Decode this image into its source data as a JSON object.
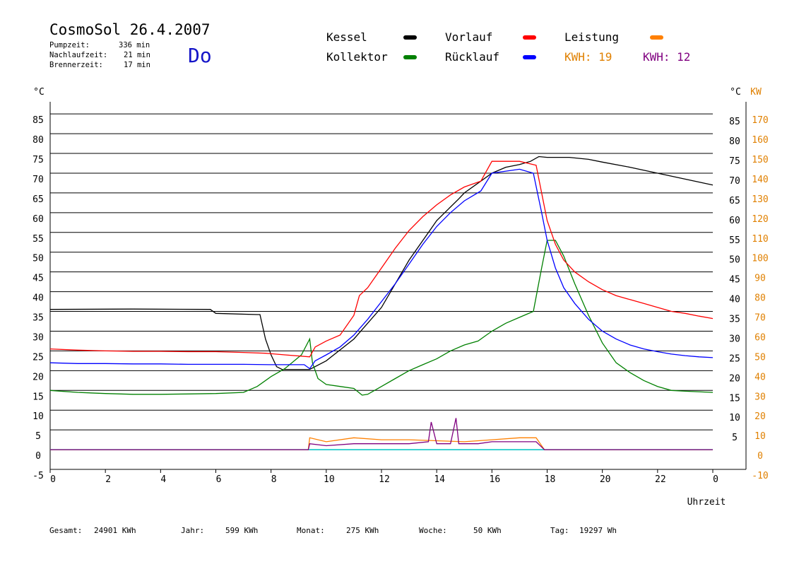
{
  "header": {
    "title": "CosmoSol 26.4.2007",
    "weekday": "Do",
    "stats": [
      {
        "label": "Pumpzeit:",
        "value": "336 min"
      },
      {
        "label": "Nachlaufzeit:",
        "value": "21 min"
      },
      {
        "label": "Brennerzeit:",
        "value": "17 min"
      }
    ]
  },
  "legend": {
    "items": [
      {
        "label": "Kessel",
        "color": "#000000"
      },
      {
        "label": "Kollektor",
        "color": "#008000"
      },
      {
        "label": "Vorlauf",
        "color": "#ff0000"
      },
      {
        "label": "Rücklauf",
        "color": "#0000ff"
      },
      {
        "label": "Leistung",
        "color": "#ff8000"
      }
    ],
    "kwh": [
      {
        "label": "KWH:",
        "value": "19",
        "color": "#e08000"
      },
      {
        "label": "KWH:",
        "value": "12",
        "color": "#800080"
      }
    ]
  },
  "footer": [
    {
      "label": "Gesamt:",
      "value": "24901 KWh"
    },
    {
      "label": "Jahr:",
      "value": "599 KWh"
    },
    {
      "label": "Monat:",
      "value": "275 KWh"
    },
    {
      "label": "Woche:",
      "value": "50 KWh"
    },
    {
      "label": "Tag:",
      "value": "19297 Wh"
    }
  ],
  "chart_data": {
    "type": "line",
    "xlabel": "Uhrzeit",
    "ylabel_left": "°C",
    "ylabel_right_temp": "°C",
    "ylabel_right_power": "KW",
    "xlim": [
      0,
      24
    ],
    "ylim": [
      -5,
      87
    ],
    "power_lim": [
      -10,
      174
    ],
    "x_ticks": [
      "0",
      "2",
      "4",
      "6",
      "8",
      "10",
      "12",
      "14",
      "16",
      "18",
      "20",
      "22",
      "0"
    ],
    "y_ticks_left": [
      85,
      80,
      75,
      70,
      65,
      60,
      55,
      50,
      45,
      40,
      35,
      30,
      25,
      20,
      15,
      10,
      5,
      0,
      -5
    ],
    "y_ticks_right_temp": [
      85,
      80,
      75,
      70,
      65,
      60,
      55,
      50,
      45,
      40,
      35,
      30,
      25,
      20,
      15,
      10,
      5
    ],
    "y_ticks_right_power": [
      170,
      160,
      150,
      140,
      130,
      120,
      110,
      100,
      90,
      80,
      70,
      60,
      50,
      40,
      30,
      20,
      10,
      0,
      -10
    ],
    "grid": true,
    "series": [
      {
        "name": "Kessel",
        "color": "#000000",
        "points": [
          [
            0,
            35.5
          ],
          [
            3,
            35.6
          ],
          [
            5.8,
            35.5
          ],
          [
            6,
            34.5
          ],
          [
            7.5,
            34.2
          ],
          [
            7.6,
            34.2
          ],
          [
            7.8,
            28
          ],
          [
            8,
            24
          ],
          [
            8.2,
            21
          ],
          [
            8.4,
            20.3
          ],
          [
            9.4,
            20.3
          ],
          [
            10,
            22.5
          ],
          [
            11,
            28
          ],
          [
            12,
            36
          ],
          [
            13,
            48
          ],
          [
            13.8,
            56
          ],
          [
            14,
            58
          ],
          [
            14.8,
            63.5
          ],
          [
            15,
            65
          ],
          [
            15.6,
            68
          ],
          [
            16,
            70
          ],
          [
            16.5,
            71.5
          ],
          [
            17,
            72.2
          ],
          [
            17.4,
            73
          ],
          [
            17.7,
            74.2
          ],
          [
            18,
            74
          ],
          [
            18.8,
            74
          ],
          [
            19.5,
            73.5
          ],
          [
            20,
            72.8
          ],
          [
            21,
            71.5
          ],
          [
            22,
            70
          ],
          [
            23,
            68.5
          ],
          [
            24,
            67
          ]
        ]
      },
      {
        "name": "Kollektor",
        "color": "#008000",
        "points": [
          [
            0,
            15
          ],
          [
            1,
            14.5
          ],
          [
            2,
            14.2
          ],
          [
            3,
            14
          ],
          [
            4,
            14
          ],
          [
            5,
            14.1
          ],
          [
            6,
            14.2
          ],
          [
            7,
            14.5
          ],
          [
            7.5,
            16
          ],
          [
            8,
            18.5
          ],
          [
            8.5,
            20.5
          ],
          [
            9.1,
            24
          ],
          [
            9.4,
            28
          ],
          [
            9.5,
            22
          ],
          [
            9.7,
            18
          ],
          [
            10,
            16.5
          ],
          [
            10.5,
            16
          ],
          [
            11,
            15.5
          ],
          [
            11.3,
            13.8
          ],
          [
            11.5,
            14
          ],
          [
            12,
            16
          ],
          [
            12.5,
            18
          ],
          [
            13,
            20
          ],
          [
            13.5,
            21.5
          ],
          [
            14,
            23
          ],
          [
            14.5,
            25
          ],
          [
            15,
            26.5
          ],
          [
            15.5,
            27.5
          ],
          [
            15.8,
            29
          ],
          [
            16,
            30
          ],
          [
            16.5,
            32
          ],
          [
            17,
            33.5
          ],
          [
            17.5,
            35
          ],
          [
            17.8,
            46
          ],
          [
            18,
            53
          ],
          [
            18.3,
            53
          ],
          [
            18.6,
            49
          ],
          [
            19,
            42
          ],
          [
            19.5,
            34
          ],
          [
            20,
            27
          ],
          [
            20.5,
            22
          ],
          [
            21,
            19.5
          ],
          [
            21.5,
            17.5
          ],
          [
            22,
            16
          ],
          [
            22.5,
            15
          ],
          [
            23,
            14.8
          ],
          [
            24,
            14.5
          ]
        ]
      },
      {
        "name": "Vorlauf",
        "color": "#ff0000",
        "points": [
          [
            0,
            25.5
          ],
          [
            1,
            25.2
          ],
          [
            2,
            25
          ],
          [
            3,
            24.9
          ],
          [
            4,
            24.9
          ],
          [
            5,
            24.8
          ],
          [
            6,
            24.8
          ],
          [
            7,
            24.6
          ],
          [
            7.8,
            24.4
          ],
          [
            8.5,
            24
          ],
          [
            9.4,
            23.5
          ],
          [
            9.6,
            26
          ],
          [
            10,
            27.5
          ],
          [
            10.5,
            29
          ],
          [
            11,
            34
          ],
          [
            11.2,
            39
          ],
          [
            11.5,
            41
          ],
          [
            12,
            46
          ],
          [
            12.5,
            51
          ],
          [
            13,
            55.5
          ],
          [
            13.5,
            59
          ],
          [
            14,
            62
          ],
          [
            14.5,
            64.5
          ],
          [
            15,
            66.5
          ],
          [
            15.6,
            68
          ],
          [
            16,
            73
          ],
          [
            17,
            73
          ],
          [
            17.6,
            72
          ],
          [
            17.8,
            65
          ],
          [
            18,
            58
          ],
          [
            18.3,
            52
          ],
          [
            18.6,
            48
          ],
          [
            19,
            45
          ],
          [
            19.5,
            42.5
          ],
          [
            20,
            40.5
          ],
          [
            20.5,
            39
          ],
          [
            21,
            38
          ],
          [
            21.5,
            37
          ],
          [
            22,
            36
          ],
          [
            22.5,
            35
          ],
          [
            23,
            34.5
          ],
          [
            23.5,
            33.8
          ],
          [
            24,
            33.2
          ]
        ]
      },
      {
        "name": "Rücklauf",
        "color": "#0000ff",
        "points": [
          [
            0,
            22
          ],
          [
            1,
            21.8
          ],
          [
            2,
            21.8
          ],
          [
            3,
            21.7
          ],
          [
            4,
            21.7
          ],
          [
            5,
            21.6
          ],
          [
            6,
            21.6
          ],
          [
            7,
            21.6
          ],
          [
            8,
            21.5
          ],
          [
            9.2,
            21.5
          ],
          [
            9.4,
            20.5
          ],
          [
            9.6,
            22.5
          ],
          [
            10,
            24
          ],
          [
            10.5,
            26
          ],
          [
            11,
            29
          ],
          [
            11.5,
            33
          ],
          [
            12,
            37.5
          ],
          [
            12.5,
            42
          ],
          [
            13,
            47
          ],
          [
            13.5,
            52
          ],
          [
            14,
            56.5
          ],
          [
            14.5,
            60
          ],
          [
            15,
            63
          ],
          [
            15.6,
            65.5
          ],
          [
            16,
            70
          ],
          [
            17,
            71
          ],
          [
            17.5,
            70
          ],
          [
            17.8,
            60
          ],
          [
            18,
            53
          ],
          [
            18.3,
            46
          ],
          [
            18.6,
            41
          ],
          [
            19,
            37
          ],
          [
            19.5,
            33
          ],
          [
            20,
            30
          ],
          [
            20.5,
            28
          ],
          [
            21,
            26.5
          ],
          [
            21.5,
            25.5
          ],
          [
            22,
            24.8
          ],
          [
            22.5,
            24.2
          ],
          [
            23,
            23.8
          ],
          [
            23.5,
            23.5
          ],
          [
            24,
            23.3
          ]
        ]
      },
      {
        "name": "Leistung",
        "color": "#ff8000",
        "axis": "power",
        "points": [
          [
            0,
            0
          ],
          [
            9.35,
            0
          ],
          [
            9.4,
            6
          ],
          [
            10,
            4
          ],
          [
            11,
            6
          ],
          [
            12,
            5
          ],
          [
            13,
            5
          ],
          [
            14,
            4.5
          ],
          [
            15,
            4
          ],
          [
            16,
            5
          ],
          [
            17,
            6
          ],
          [
            17.6,
            6
          ],
          [
            17.9,
            0
          ],
          [
            24,
            0
          ]
        ]
      },
      {
        "name": "",
        "color": "#800080",
        "axis": "power",
        "points": [
          [
            0,
            0
          ],
          [
            9.35,
            0
          ],
          [
            9.4,
            3
          ],
          [
            10,
            2
          ],
          [
            11,
            3
          ],
          [
            12,
            3
          ],
          [
            13,
            3
          ],
          [
            13.7,
            4
          ],
          [
            13.8,
            14
          ],
          [
            14,
            3
          ],
          [
            14.5,
            3
          ],
          [
            14.7,
            16
          ],
          [
            14.8,
            3
          ],
          [
            15.5,
            3
          ],
          [
            16,
            4
          ],
          [
            17,
            4
          ],
          [
            17.6,
            4
          ],
          [
            17.9,
            0
          ],
          [
            24,
            0
          ]
        ]
      }
    ]
  }
}
